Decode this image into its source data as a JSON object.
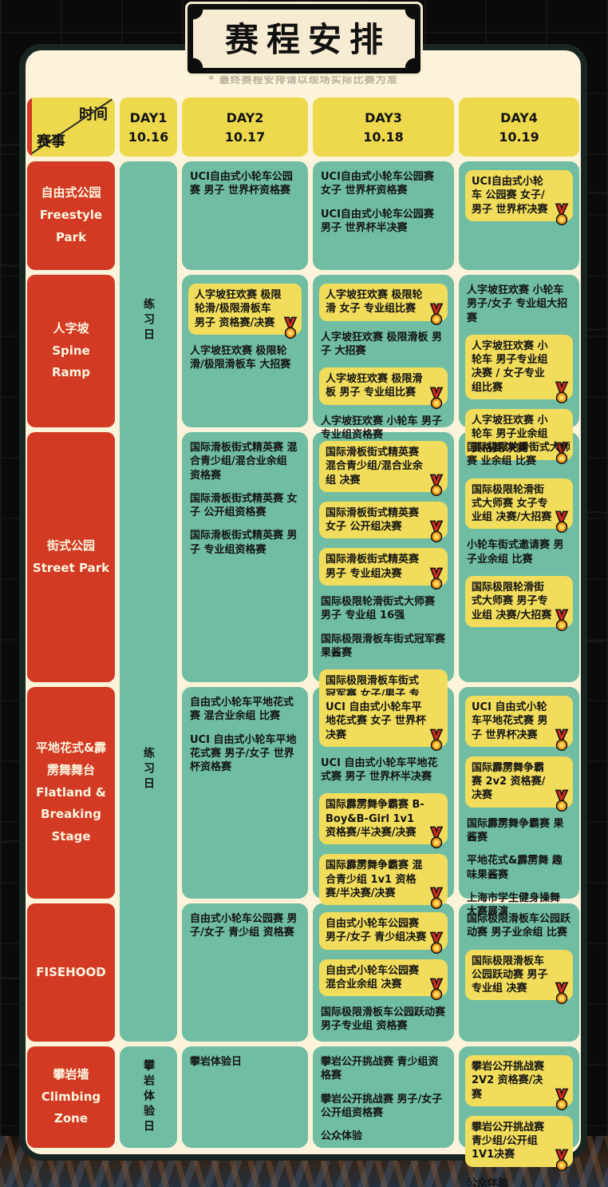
{
  "title": "赛程安排",
  "disclaimer": "* 最终赛程安排请以现场实际比赛为准",
  "colors": {
    "panel_cream": "#fdf3da",
    "panel_border": "#182623",
    "header_yellow": "#eed94d",
    "highlight_yellow": "#f2dc5c",
    "cell_teal": "#70bda3",
    "venue_red": "#d23a23",
    "medal_ribbon": "#d02c1e",
    "medal_gold": "#f39d1f",
    "text_dark": "#131313",
    "text_light": "#fdf5e0"
  },
  "header": {
    "corner": {
      "time_label": "时间",
      "event_label": "赛事"
    },
    "days": [
      {
        "label": "DAY1",
        "date": "10.16"
      },
      {
        "label": "DAY2",
        "date": "10.17"
      },
      {
        "label": "DAY3",
        "date": "10.18"
      },
      {
        "label": "DAY4",
        "date": "10.19"
      }
    ]
  },
  "day1_column": {
    "practice_labels": [
      "练习日",
      "练习日"
    ],
    "climbing_label": "攀岩体验日"
  },
  "rows": [
    {
      "venue_zh": "自由式公园",
      "venue_en": "Freestyle Park",
      "day2": [
        {
          "t": "UCI自由式小轮车公园赛 男子 世界杯资格赛",
          "h": false
        }
      ],
      "day3": [
        {
          "t": "UCI自由式小轮车公园赛 女子 世界杯资格赛",
          "h": false
        },
        {
          "t": "UCI自由式小轮车公园赛 男子 世界杯半决赛",
          "h": false
        }
      ],
      "day4": [
        {
          "t": "UCI自由式小轮车 公园赛 女子/男子 世界杯决赛",
          "h": true
        }
      ]
    },
    {
      "venue_zh": "人字坡",
      "venue_en": "Spine Ramp",
      "day2": [
        {
          "t": "人字坡狂欢赛 极限轮滑/极限滑板车 男子 资格赛/决赛",
          "h": true
        },
        {
          "t": "人字坡狂欢赛 极限轮滑/极限滑板车 大招赛",
          "h": false
        }
      ],
      "day3": [
        {
          "t": "人字坡狂欢赛 极限轮滑 女子 专业组比赛",
          "h": true
        },
        {
          "t": "人字坡狂欢赛 极限滑板 男子 大招赛",
          "h": false
        },
        {
          "t": "人字坡狂欢赛 极限滑板 男子 专业组比赛",
          "h": true
        },
        {
          "t": "人字坡狂欢赛 小轮车 男子 专业组资格赛",
          "h": false
        }
      ],
      "day4": [
        {
          "t": "人字坡狂欢赛 小轮车 男子/女子 专业组大招赛",
          "h": false
        },
        {
          "t": "人字坡狂欢赛 小轮车 男子专业组决赛 / 女子专业组比赛",
          "h": true
        },
        {
          "t": "人字坡狂欢赛 小轮车 男子业余组 资格赛/决赛",
          "h": true
        }
      ]
    },
    {
      "venue_zh": "街式公园",
      "venue_en": "Street Park",
      "day2": [
        {
          "t": "国际滑板街式精英赛 混合青少组/混合业余组 资格赛",
          "h": false
        },
        {
          "t": "国际滑板街式精英赛 女子 公开组资格赛",
          "h": false
        },
        {
          "t": "国际滑板街式精英赛 男子 专业组资格赛",
          "h": false
        }
      ],
      "day3": [
        {
          "t": "国际滑板街式精英赛 混合青少组/混合业余组 决赛",
          "h": true
        },
        {
          "t": "国际滑板街式精英赛 女子 公开组决赛",
          "h": true
        },
        {
          "t": "国际滑板街式精英赛 男子 专业组决赛",
          "h": true
        },
        {
          "t": "国际极限轮滑街式大师赛 男子 专业组 16强",
          "h": false
        },
        {
          "t": "国际极限滑板车街式冠军赛 果酱赛",
          "h": false
        },
        {
          "t": "国际极限滑板车街式冠军赛 女子/男子 专业组 决赛",
          "h": true
        }
      ],
      "day4": [
        {
          "t": "国际极限轮滑街式大师赛 业余组 比赛",
          "h": false
        },
        {
          "t": "国际极限轮滑街式大师赛 女子专业组 决赛/大招赛",
          "h": true
        },
        {
          "t": "小轮车街式邀请赛 男子业余组 比赛",
          "h": false
        },
        {
          "t": "国际极限轮滑街式大师赛 男子专业组 决赛/大招赛",
          "h": true
        }
      ]
    },
    {
      "venue_zh": "平地花式&霹雳舞舞台",
      "venue_en": "Flatland & Breaking Stage",
      "day2": [
        {
          "t": "自由式小轮车平地花式赛 混合业余组 比赛",
          "h": false
        },
        {
          "t": "UCI 自由式小轮车平地花式赛 男子/女子 世界杯资格赛",
          "h": false
        }
      ],
      "day3": [
        {
          "t": "UCI 自由式小轮车平地花式赛 女子 世界杯决赛",
          "h": true
        },
        {
          "t": "UCI 自由式小轮车平地花式赛 男子 世界杯半决赛",
          "h": false
        },
        {
          "t": "国际霹雳舞争霸赛 B-Boy&B-Girl 1v1 资格赛/半决赛/决赛",
          "h": true
        },
        {
          "t": "国际霹雳舞争霸赛 混合青少组 1v1 资格赛/半决赛/决赛",
          "h": true
        }
      ],
      "day4": [
        {
          "t": "UCI 自由式小轮车平地花式赛 男子 世界杯决赛",
          "h": true
        },
        {
          "t": "国际霹雳舞争霸赛 2v2 资格赛/决赛",
          "h": true
        },
        {
          "t": "国际霹雳舞争霸赛 果酱赛",
          "h": false
        },
        {
          "t": "平地花式&霹雳舞 趣味果酱赛",
          "h": false
        },
        {
          "t": "上海市学生健身操舞 大赛展演",
          "h": false
        }
      ]
    },
    {
      "venue_zh": "",
      "venue_en": "FISEHOOD",
      "day2": [
        {
          "t": "自由式小轮车公园赛 男子/女子 青少组 资格赛",
          "h": false
        }
      ],
      "day3": [
        {
          "t": "自由式小轮车公园赛 男子/女子 青少组决赛",
          "h": true
        },
        {
          "t": "自由式小轮车公园赛 混合业余组 决赛",
          "h": true
        },
        {
          "t": "国际极限滑板车公园跃动赛 男子专业组 资格赛",
          "h": false
        }
      ],
      "day4": [
        {
          "t": "国际极限滑板车公园跃动赛 男子业余组 比赛",
          "h": false
        },
        {
          "t": "国际极限滑板车公园跃动赛 男子专业组 决赛",
          "h": true
        }
      ]
    },
    {
      "venue_zh": "攀岩墙",
      "venue_en": "Climbing Zone",
      "day2": [
        {
          "t": "攀岩体验日",
          "h": false
        }
      ],
      "day3": [
        {
          "t": "攀岩公开挑战赛 青少组资格赛",
          "h": false
        },
        {
          "t": "攀岩公开挑战赛 男子/女子 公开组资格赛",
          "h": false
        },
        {
          "t": "公众体验",
          "h": false
        }
      ],
      "day4": [
        {
          "t": "攀岩公开挑战赛 2V2 资格赛/决赛",
          "h": true
        },
        {
          "t": "攀岩公开挑战赛 青少组/公开组 1V1决赛",
          "h": true
        },
        {
          "t": "公众体验",
          "h": false
        }
      ]
    }
  ]
}
